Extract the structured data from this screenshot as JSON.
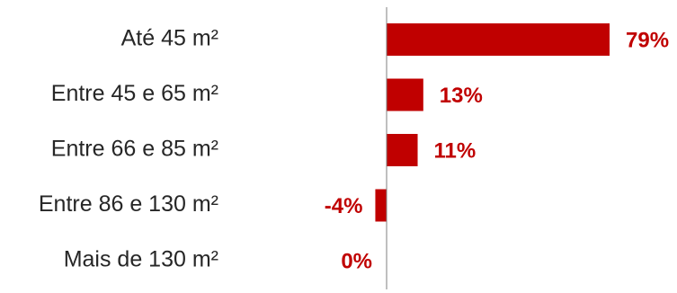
{
  "chart_data": {
    "type": "bar",
    "orientation": "horizontal",
    "categories": [
      "Até 45 m²",
      "Entre 45 e 65 m²",
      "Entre 66 e 85 m²",
      "Entre 86 e 130 m²",
      "Mais de 130 m²"
    ],
    "values": [
      79,
      13,
      11,
      -4,
      0
    ],
    "value_labels": [
      "79%",
      "13%",
      "11%",
      "-4%",
      "0%"
    ],
    "unit": "%",
    "xlim": [
      -5,
      80
    ],
    "grid": false,
    "bar_color": "#C00000",
    "label_color": "#C00000",
    "axis_color": "#7f7f7f"
  }
}
